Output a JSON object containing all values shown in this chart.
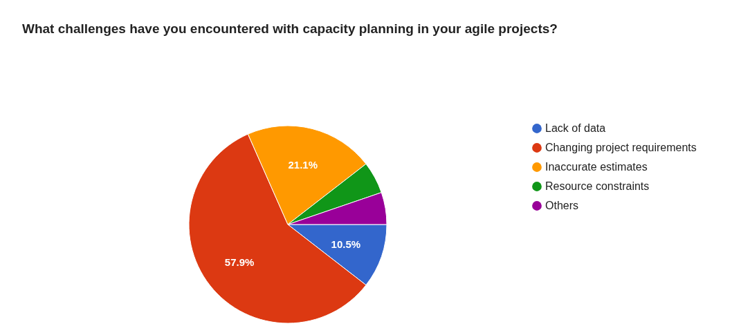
{
  "chart_data": {
    "type": "pie",
    "title": "What challenges have you encountered with capacity planning in your agile projects?",
    "categories": [
      "Lack of data",
      "Changing project requirements",
      "Inaccurate estimates",
      "Resource constraints",
      "Others"
    ],
    "values": [
      10.5,
      57.9,
      21.1,
      5.25,
      5.25
    ],
    "colors": [
      "#3366cc",
      "#dc3912",
      "#ff9900",
      "#109618",
      "#990099"
    ],
    "value_labels": [
      "10.5%",
      "57.9%",
      "21.1%",
      null,
      null
    ],
    "legend": "right"
  }
}
